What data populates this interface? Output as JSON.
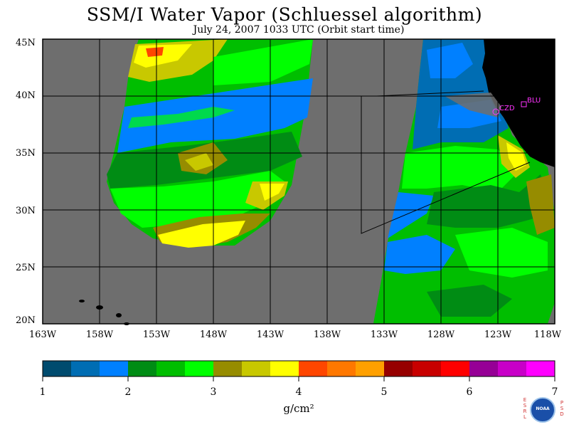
{
  "title": "SSM/I Water Vapor (Schluessel algorithm)",
  "subtitle": "July 24, 2007  1033 UTC  (Orbit start time)",
  "map": {
    "lat_labels": [
      "45N",
      "40N",
      "35N",
      "30N",
      "25N",
      "20N"
    ],
    "lon_labels": [
      "163W",
      "158W",
      "153W",
      "148W",
      "143W",
      "138W",
      "133W",
      "128W",
      "123W",
      "118W"
    ],
    "lat_range": [
      20,
      45
    ],
    "lon_range": [
      -163,
      -118
    ],
    "background_color": "#6e6e6e",
    "land_color": "#000000"
  },
  "stations": [
    {
      "name": "CZD",
      "lat": 38.6,
      "lon": -123.2
    },
    {
      "name": "BLU",
      "lat": 39.2,
      "lon": -120.7
    }
  ],
  "colorbar": {
    "min": 1,
    "max": 7,
    "labels": [
      "1",
      "2",
      "3",
      "4",
      "5",
      "6",
      "7"
    ],
    "colors": [
      "#004b6e",
      "#006db3",
      "#0080ff",
      "#008c14",
      "#00be00",
      "#00ff00",
      "#968c00",
      "#c8c800",
      "#ffff00",
      "#ff4600",
      "#ff7800",
      "#ffa000",
      "#960000",
      "#c80000",
      "#ff0000",
      "#960096",
      "#c800c8",
      "#ff00ff"
    ],
    "unit": "g/cm²"
  },
  "logo": {
    "left_letters": "ESRL",
    "right_letters": "PSD",
    "seal_text": "NOAA"
  }
}
